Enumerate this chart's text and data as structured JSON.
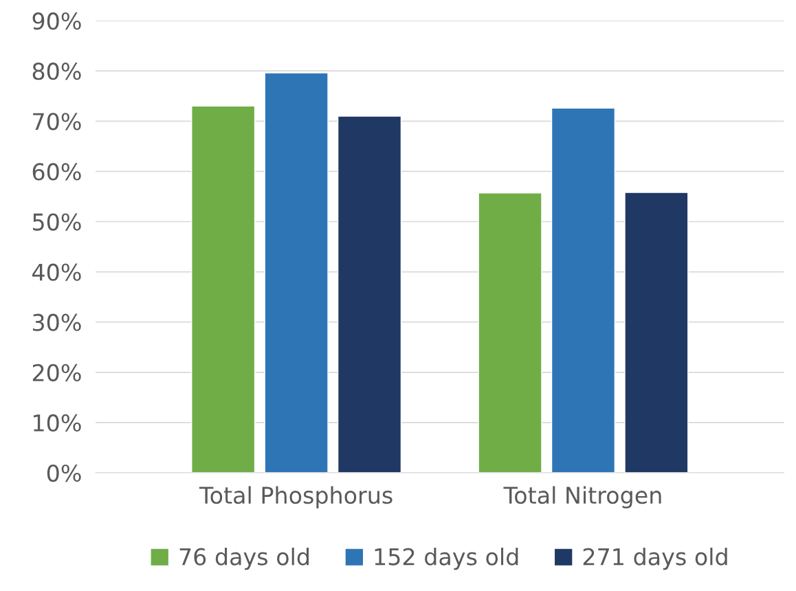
{
  "chart_data": {
    "type": "bar",
    "categories": [
      "Total Phosphorus",
      "Total Nitrogen"
    ],
    "series": [
      {
        "name": "76 days old",
        "color": "#70ad47",
        "values": [
          73,
          55.7
        ]
      },
      {
        "name": "152 days old",
        "color": "#2e75b6",
        "values": [
          79.6,
          72.6
        ]
      },
      {
        "name": "271 days old",
        "color": "#203864",
        "values": [
          71,
          55.8
        ]
      }
    ],
    "ylim": [
      0,
      90
    ],
    "yticks": [
      {
        "value": 0,
        "label": "0%"
      },
      {
        "value": 10,
        "label": "10%"
      },
      {
        "value": 20,
        "label": "20%"
      },
      {
        "value": 30,
        "label": "30%"
      },
      {
        "value": 40,
        "label": "40%"
      },
      {
        "value": 50,
        "label": "50%"
      },
      {
        "value": 60,
        "label": "60%"
      },
      {
        "value": 70,
        "label": "70%"
      },
      {
        "value": 80,
        "label": "80%"
      },
      {
        "value": 90,
        "label": "90%"
      }
    ],
    "grid": "y",
    "legend": "bottom"
  }
}
